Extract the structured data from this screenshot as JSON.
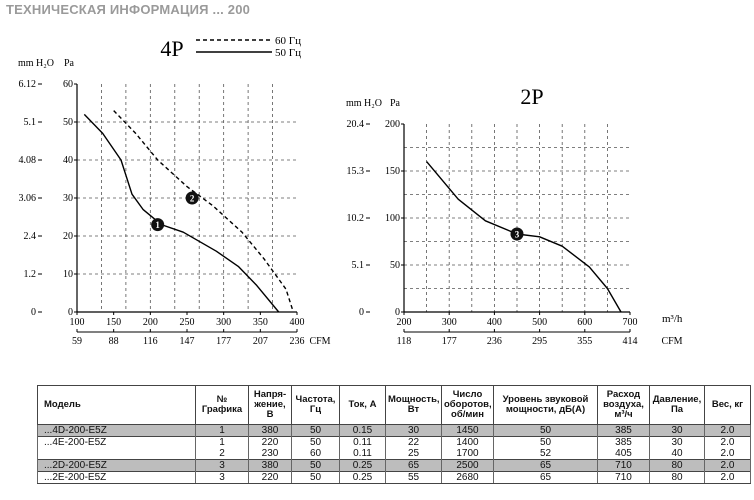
{
  "page": {
    "title": "ТЕХНИЧЕСКАЯ ИНФОРМАЦИЯ  ... 200"
  },
  "chart_data": [
    {
      "type": "line",
      "title": "4P",
      "left_axis_unit": "mm H₂O",
      "left_ticks": [
        "6.12",
        "5.1",
        "4.08",
        "3.06",
        "2.4",
        "1.2",
        "0"
      ],
      "ylabel": "Pa",
      "yticks": [
        60,
        50,
        40,
        30,
        20,
        10,
        0
      ],
      "ylim": [
        0,
        60
      ],
      "xlim": [
        100,
        400
      ],
      "xticks": [
        100,
        150,
        200,
        250,
        300,
        350,
        400
      ],
      "xlabel": "",
      "cfm_label": "CFM",
      "cfm_ticks": [
        "59",
        "88",
        "116",
        "147",
        "177",
        "207",
        "236"
      ],
      "grid": true,
      "legend": [
        {
          "name": "60 Гц",
          "style": "dashed"
        },
        {
          "name": "50 Гц",
          "style": "solid"
        }
      ],
      "series": [
        {
          "name": "50 Гц",
          "style": "solid",
          "marker": "1",
          "x": [
            110,
            135,
            160,
            175,
            190,
            215,
            245,
            290,
            320,
            345,
            375
          ],
          "y": [
            52,
            47,
            40,
            31,
            27,
            23,
            21,
            16,
            12,
            7,
            0
          ]
        },
        {
          "name": "60 Гц",
          "style": "dashed",
          "marker": "2",
          "x": [
            150,
            180,
            210,
            250,
            285,
            325,
            355,
            385,
            395
          ],
          "y": [
            53,
            47,
            40,
            33,
            28,
            21,
            14,
            6,
            0
          ]
        }
      ],
      "markers": [
        {
          "label": "1",
          "x": 210,
          "y": 23
        },
        {
          "label": "2",
          "x": 257,
          "y": 30
        }
      ]
    },
    {
      "type": "line",
      "title": "2P",
      "left_axis_unit": "mm H₂O",
      "left_ticks": [
        "20.4",
        "15.3",
        "10.2",
        "5.1",
        "0"
      ],
      "ylabel": "Pa",
      "yticks": [
        200,
        150,
        100,
        50,
        0
      ],
      "ylim": [
        0,
        200
      ],
      "xlim": [
        200,
        700
      ],
      "xticks": [
        200,
        300,
        400,
        500,
        600,
        700
      ],
      "xlabel": "m³/h",
      "cfm_label": "CFM",
      "cfm_ticks": [
        "118",
        "177",
        "236",
        "295",
        "355",
        "414"
      ],
      "grid": true,
      "series": [
        {
          "name": "",
          "style": "solid",
          "marker": "3",
          "x": [
            250,
            320,
            380,
            450,
            500,
            550,
            610,
            650,
            680
          ],
          "y": [
            160,
            120,
            97,
            83,
            80,
            70,
            48,
            25,
            0
          ]
        }
      ],
      "markers": [
        {
          "label": "3",
          "x": 450,
          "y": 83
        }
      ]
    }
  ],
  "table": {
    "headers": [
      "Модель",
      "№ Графика",
      "Напря- жение, В",
      "Частота, Гц",
      "Ток, А",
      "Мощность, Вт",
      "Число оборотов, об/мин",
      "Уровень звуковой мощности, дБ(А)",
      "Расход воздуха, м³/ч",
      "Давление, Па",
      "Вес, кг"
    ],
    "rows": [
      {
        "cells": [
          "...4D-200-E5Z",
          "1",
          "380",
          "50",
          "0.15",
          "30",
          "1450",
          "50",
          "385",
          "30",
          "2.0"
        ],
        "style": "gray sep"
      },
      {
        "cells": [
          "...4E-200-E5Z",
          "1",
          "220",
          "50",
          "0.11",
          "22",
          "1400",
          "50",
          "385",
          "30",
          "2.0"
        ],
        "style": "sep"
      },
      {
        "cells": [
          "",
          "2",
          "230",
          "60",
          "0.11",
          "25",
          "1700",
          "52",
          "405",
          "40",
          "2.0"
        ],
        "style": ""
      },
      {
        "cells": [
          "...2D-200-E5Z",
          "3",
          "380",
          "50",
          "0.25",
          "65",
          "2500",
          "65",
          "710",
          "80",
          "2.0"
        ],
        "style": "gray sep"
      },
      {
        "cells": [
          "...2E-200-E5Z",
          "3",
          "220",
          "50",
          "0.25",
          "55",
          "2680",
          "65",
          "710",
          "80",
          "2.0"
        ],
        "style": "sep last"
      }
    ]
  }
}
